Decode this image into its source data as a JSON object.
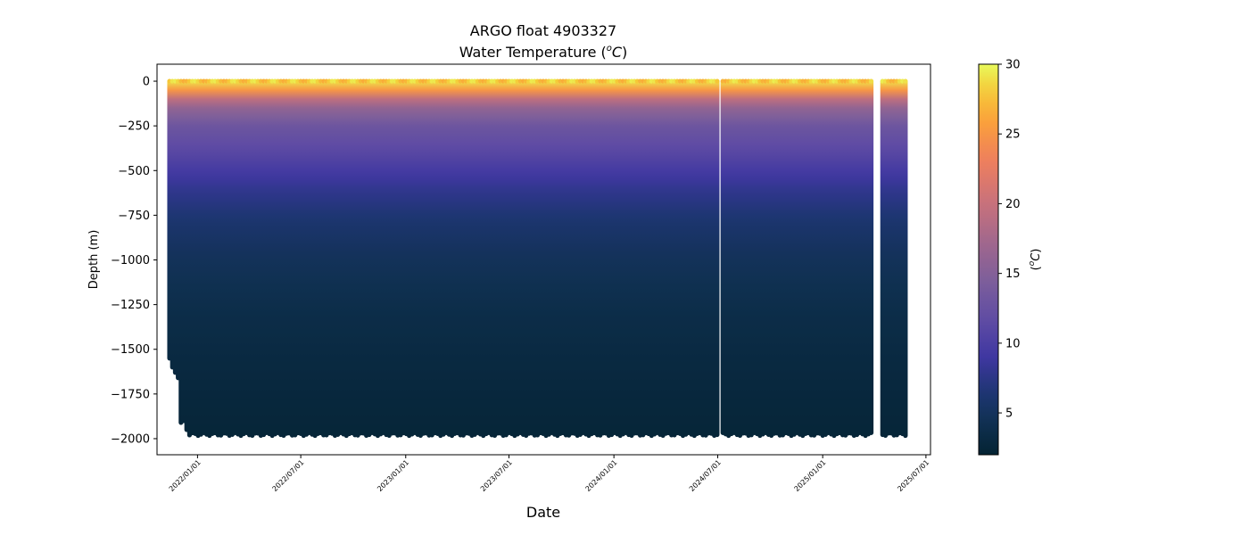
{
  "chart_data": {
    "type": "scatter",
    "title": "ARGO float 4903327",
    "subtitle_prefix": "Water Temperature (",
    "subtitle_unit_sup": "o",
    "subtitle_unit_main": "C",
    "subtitle_suffix": ")",
    "xlabel": "Date",
    "ylabel": "Depth (m)",
    "colorbar_label_open": "(",
    "colorbar_label_sup": "o",
    "colorbar_label_main": "C",
    "colorbar_label_close": ")",
    "x_range": [
      "2021-10-22",
      "2025-07-09"
    ],
    "ylim": [
      -2090,
      95
    ],
    "x_ticks": [
      "2022/01/01",
      "2022/07/01",
      "2023/01/01",
      "2023/07/01",
      "2024/01/01",
      "2024/07/01",
      "2025/01/01",
      "2025/07/01"
    ],
    "y_ticks": [
      "0",
      "−250",
      "−500",
      "−750",
      "−1000",
      "−1250",
      "−1500",
      "−1750",
      "−2000"
    ],
    "y_tick_values": [
      0,
      -250,
      -500,
      -750,
      -1000,
      -1250,
      -1500,
      -1750,
      -2000
    ],
    "colorbar": {
      "range": [
        2,
        30
      ],
      "ticks": [
        "5",
        "10",
        "15",
        "20",
        "25",
        "30"
      ],
      "tick_values": [
        5,
        10,
        15,
        20,
        25,
        30
      ],
      "colormap": "thermal"
    },
    "profiles": {
      "first_date": "2021-11-13",
      "last_date": "2025-05-26",
      "interval_days": 5,
      "gaps": [
        [
          "2024-07-02",
          "2024-07-07"
        ],
        [
          "2025-03-28",
          "2025-04-12"
        ]
      ],
      "surface_depth_m": 0,
      "max_depth_first_profiles_m": [
        -1550,
        -1600,
        -1630,
        -1660,
        -1910,
        -1900,
        -1950
      ],
      "max_depth_typical_m": -1975
    },
    "temperature_profile_typical": {
      "depth_m": [
        0,
        -30,
        -60,
        -120,
        -250,
        -400,
        -600,
        -800,
        -1000,
        -1300,
        -1600,
        -2000
      ],
      "temp_c": [
        29,
        27,
        24,
        17,
        13,
        11,
        8,
        6,
        4.8,
        3.7,
        3.0,
        2.4
      ]
    }
  }
}
